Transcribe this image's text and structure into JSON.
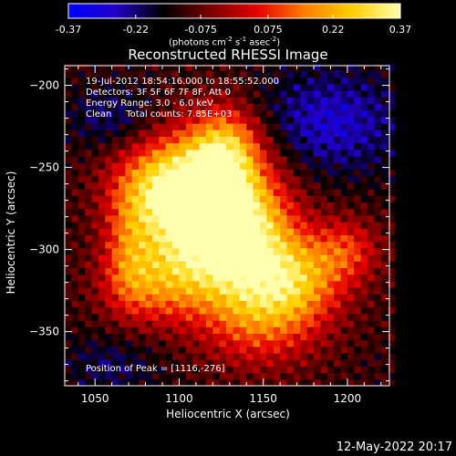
{
  "colorbar": {
    "tick_labels": [
      "-0.37",
      "-0.22",
      "-0.075",
      "0.075",
      "0.22",
      "0.37"
    ],
    "tick_values": [
      -0.37,
      -0.22,
      -0.075,
      0.075,
      0.22,
      0.37
    ],
    "range": [
      -0.37,
      0.37
    ],
    "units_pre": "(photons cm",
    "units_sup1": "-2",
    "units_mid1": " s",
    "units_sup2": "-1",
    "units_mid2": " asec",
    "units_sup3": "-2",
    "units_post": ")",
    "colors": [
      "#0000ff",
      "#2200c8",
      "#000000",
      "#7a0000",
      "#e60000",
      "#ff8000",
      "#ffd000",
      "#ffffb0"
    ]
  },
  "stamp": "12-May-2022 20:17",
  "chart_data": {
    "type": "heatmap",
    "title": "Reconstructed RHESSI Image",
    "xlabel": "Heliocentric X (arcsec)",
    "ylabel": "Heliocentric Y (arcsec)",
    "xlim": [
      1032,
      1225
    ],
    "ylim": [
      -383,
      -188
    ],
    "x_ticks": [
      1050,
      1100,
      1150,
      1200
    ],
    "x_tick_labels": [
      "1050",
      "1100",
      "1150",
      "1200"
    ],
    "y_ticks": [
      -200,
      -250,
      -300,
      -350
    ],
    "y_tick_labels": [
      "−200",
      "−250",
      "−300",
      "−350"
    ],
    "annotations": [
      "19-Jul-2012 18:54:16.000 to 18:55:52.000",
      "Detectors: 3F 5F 6F 7F 8F, Att 0",
      "Energy Range: 3.0 - 6.0 keV",
      "Clean     Total counts: 7.85E+03"
    ],
    "peak_label": "Position of Peak = [1116,-276]",
    "peak_position": [
      1116,
      -276
    ],
    "cell_size_arcsec": 4,
    "background_value": -0.12,
    "blobs": [
      {
        "x": 1116,
        "y": -276,
        "sx": 26,
        "sy": 30,
        "amp": 0.5
      },
      {
        "x": 1090,
        "y": -262,
        "sx": 22,
        "sy": 20,
        "amp": 0.26
      },
      {
        "x": 1140,
        "y": -300,
        "sx": 22,
        "sy": 28,
        "amp": 0.3
      },
      {
        "x": 1170,
        "y": -318,
        "sx": 20,
        "sy": 18,
        "amp": 0.26
      },
      {
        "x": 1200,
        "y": -300,
        "sx": 14,
        "sy": 14,
        "amp": 0.18
      },
      {
        "x": 1085,
        "y": -320,
        "sx": 22,
        "sy": 18,
        "amp": 0.22
      },
      {
        "x": 1128,
        "y": -238,
        "sx": 14,
        "sy": 18,
        "amp": 0.26
      },
      {
        "x": 1150,
        "y": -345,
        "sx": 26,
        "sy": 20,
        "amp": 0.18
      },
      {
        "x": 1070,
        "y": -300,
        "sx": 10,
        "sy": 24,
        "amp": 0.14
      }
    ],
    "negative_regions": [
      {
        "x": 1190,
        "y": -222,
        "sx": 30,
        "sy": 22,
        "amp": -0.16
      },
      {
        "x": 1060,
        "y": -220,
        "sx": 18,
        "sy": 14,
        "amp": -0.1
      },
      {
        "x": 1060,
        "y": -370,
        "sx": 20,
        "sy": 14,
        "amp": -0.08
      }
    ]
  }
}
